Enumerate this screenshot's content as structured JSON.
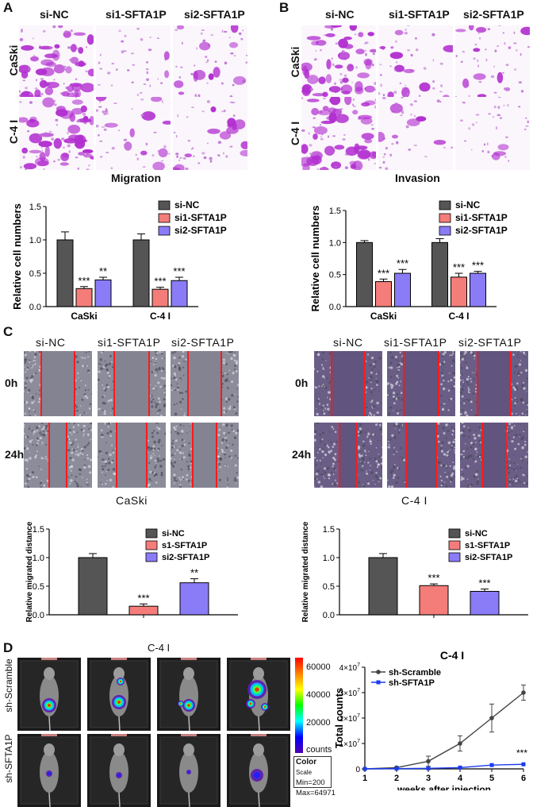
{
  "panels": {
    "A": "A",
    "B": "B",
    "C": "C",
    "D": "D"
  },
  "panelA": {
    "columns": [
      "si-NC",
      "si1-SFTA1P",
      "si2-SFTA1P"
    ],
    "rows": [
      "CaSki",
      "C-4 I"
    ],
    "caption": "Migration"
  },
  "panelB": {
    "columns": [
      "si-NC",
      "si1-SFTA1P",
      "si2-SFTA1P"
    ],
    "rows": [
      "CaSki",
      "C-4 I"
    ],
    "caption": "Invasion"
  },
  "panelC": {
    "left": {
      "columns": [
        "si-NC",
        "si1-SFTA1P",
        "si2-SFTA1P"
      ],
      "rows": [
        "0h",
        "24h"
      ],
      "caption": "CaSki"
    },
    "right": {
      "columns": [
        "si-NC",
        "si1-SFTA1P",
        "si2-SFTA1P"
      ],
      "rows": [
        "0h",
        "24h"
      ],
      "caption": "C-4 I"
    }
  },
  "panelD": {
    "title": "C-4 I",
    "rows": [
      "sh-Scramble",
      "sh-SFTA1P"
    ],
    "colorbar": {
      "ticks": [
        "60000",
        "40000",
        "20000"
      ],
      "unit": "counts",
      "scale_title": "Color",
      "scale_sub": "Scale",
      "min": "Min=200",
      "max": "Max=64971"
    }
  },
  "colors": {
    "gray": "#555555",
    "red": "#f47d7a",
    "blue": "#8a7cf6"
  },
  "chart_data": [
    {
      "id": "A-bar",
      "type": "bar",
      "title": "",
      "ylabel": "Relative cell numbers",
      "ylim": [
        0,
        1.5
      ],
      "yticks": [
        "0.0",
        "0.5",
        "1.0",
        "1.5"
      ],
      "categories": [
        "CaSki",
        "C-4 I"
      ],
      "series": [
        {
          "name": "si-NC",
          "values": [
            1.0,
            1.0
          ],
          "errors": [
            0.12,
            0.09
          ],
          "sig": [
            "",
            ""
          ]
        },
        {
          "name": "si1-SFTA1P",
          "values": [
            0.27,
            0.26
          ],
          "errors": [
            0.03,
            0.03
          ],
          "sig": [
            "***",
            "***"
          ]
        },
        {
          "name": "si2-SFTA1P",
          "values": [
            0.4,
            0.39
          ],
          "errors": [
            0.04,
            0.05
          ],
          "sig": [
            "**",
            "***"
          ]
        }
      ]
    },
    {
      "id": "B-bar",
      "type": "bar",
      "title": "",
      "ylabel": "Relative cell numbers",
      "ylim": [
        0,
        1.5
      ],
      "yticks": [
        "0.0",
        "0.5",
        "1.0",
        "1.5"
      ],
      "categories": [
        "CaSki",
        "C-4 I"
      ],
      "series": [
        {
          "name": "si-NC",
          "values": [
            1.0,
            1.0
          ],
          "errors": [
            0.03,
            0.06
          ],
          "sig": [
            "",
            ""
          ]
        },
        {
          "name": "si1-SFTA1P",
          "values": [
            0.39,
            0.46
          ],
          "errors": [
            0.04,
            0.06
          ],
          "sig": [
            "***",
            "***"
          ]
        },
        {
          "name": "si2-SFTA1P",
          "values": [
            0.52,
            0.52
          ],
          "errors": [
            0.06,
            0.03
          ],
          "sig": [
            "***",
            "***"
          ]
        }
      ]
    },
    {
      "id": "C-left-bar",
      "type": "bar",
      "ylabel": "Relative migrated distance",
      "ylim": [
        0,
        1.5
      ],
      "yticks": [
        "0.0",
        "0.5",
        "1.0",
        "1.5"
      ],
      "categories": [
        ""
      ],
      "series": [
        {
          "name": "si-NC",
          "values": [
            1.0
          ],
          "errors": [
            0.07
          ],
          "sig": [
            ""
          ]
        },
        {
          "name": "s1-SFTA1P",
          "values": [
            0.15
          ],
          "errors": [
            0.04
          ],
          "sig": [
            "***"
          ]
        },
        {
          "name": "si2-SFTA1P",
          "values": [
            0.56
          ],
          "errors": [
            0.07
          ],
          "sig": [
            "**"
          ]
        }
      ]
    },
    {
      "id": "C-right-bar",
      "type": "bar",
      "ylabel": "Relative migrated distance",
      "ylim": [
        0,
        1.5
      ],
      "yticks": [
        "0.0",
        "0.5",
        "1.0",
        "1.5"
      ],
      "categories": [
        ""
      ],
      "series": [
        {
          "name": "si-NC",
          "values": [
            1.0
          ],
          "errors": [
            0.07
          ],
          "sig": [
            ""
          ]
        },
        {
          "name": "s1-SFTA1P",
          "values": [
            0.51
          ],
          "errors": [
            0.03
          ],
          "sig": [
            "***"
          ]
        },
        {
          "name": "si2-SFTA1P",
          "values": [
            0.41
          ],
          "errors": [
            0.04
          ],
          "sig": [
            "***"
          ]
        }
      ]
    },
    {
      "id": "D-line",
      "type": "line",
      "title": "C-4 I",
      "xlabel": "weeks after injection",
      "ylabel": "Total counts",
      "x": [
        1,
        2,
        3,
        4,
        5,
        6
      ],
      "xlim": [
        1,
        6
      ],
      "ylim": [
        0,
        40000000.0
      ],
      "yticks": [
        {
          "v": 0,
          "base": "0",
          "exp": ""
        },
        {
          "v": 10000000.0,
          "base": "1×10",
          "exp": "7"
        },
        {
          "v": 20000000.0,
          "base": "2×10",
          "exp": "7"
        },
        {
          "v": 30000000.0,
          "base": "3×10",
          "exp": "7"
        },
        {
          "v": 40000000.0,
          "base": "4×10",
          "exp": "7"
        }
      ],
      "series": [
        {
          "name": "sh-Scramble",
          "values": [
            0,
            500000,
            3000000,
            10000000,
            20000000,
            30000000
          ],
          "errors": [
            0,
            300000,
            2000000,
            3000000,
            5500000,
            3000000
          ],
          "color": "#444444"
        },
        {
          "name": "sh-SFTA1P",
          "values": [
            0,
            100000,
            200000,
            500000,
            1500000,
            1800000
          ],
          "errors": [
            0,
            0,
            0,
            0,
            0,
            0
          ],
          "color": "#1a3cf0"
        }
      ],
      "annotation": "***"
    }
  ]
}
